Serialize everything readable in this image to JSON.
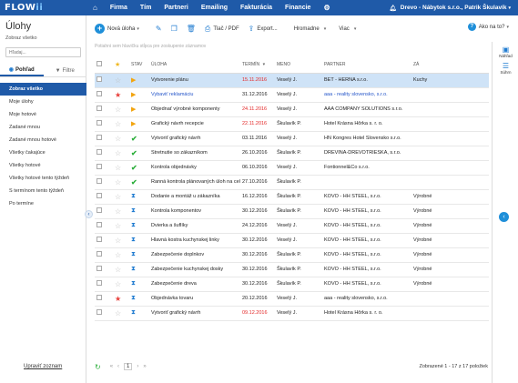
{
  "topbar": {
    "logo": "FLOW",
    "logo_suffix": "ii",
    "nav": [
      "Firma",
      "Tím",
      "Partneri",
      "Emailing",
      "Fakturácia",
      "Financie"
    ],
    "company_user": "Drevo - Nábytok s.r.o., Patrik Škulavík"
  },
  "left": {
    "title": "Úlohy",
    "subtitle": "Zobraz všetko",
    "search_placeholder": "Hľadaj...",
    "tab_view": "Pohľad",
    "tab_filter": "Filtre",
    "items": [
      "Zobraz všetko",
      "Moje úlohy",
      "Moje hotové",
      "Zadané mnou",
      "Zadané mnou hotové",
      "Všetky čakajúce",
      "Všetky hotové",
      "Všetky hotové tento týždeň",
      "S termínom tento týždeň",
      "Po termíne"
    ],
    "edit_list": "Upraviť zoznam"
  },
  "toolbar": {
    "new_task": "Nová úloha",
    "print_pdf": "Tlač / PDF",
    "export": "Export...",
    "bulk": "Hromadne",
    "more": "Viac",
    "help": "Ako na to?"
  },
  "group_hint": "Potiahni sem hlavičku stĺpca pre zoskupenie záznamov",
  "table": {
    "headers": [
      "",
      "",
      "STAV",
      "ÚLOHA",
      "TERMÍN",
      "MENO",
      "PARTNER",
      "ZÁ"
    ],
    "rows": [
      {
        "status": "flag",
        "star": false,
        "task": "Vytvorenie plánu",
        "date": "15.11.2016",
        "date_red": true,
        "name": "Veselý J.",
        "partner": "BET - HERNA s.r.o.",
        "extra": "Kuchy",
        "selected": true,
        "blue": false
      },
      {
        "status": "flag",
        "star": true,
        "task": "Vybaviť reklamáciu",
        "date": "31.12.2016",
        "date_red": false,
        "name": "Veselý J.",
        "partner": "aaa - reality slovensko, s.r.o.",
        "extra": "",
        "selected": false,
        "blue": true
      },
      {
        "status": "flag",
        "star": false,
        "task": "Objednať výrobné komponenty",
        "date": "24.11.2016",
        "date_red": true,
        "name": "Veselý J.",
        "partner": "AAA COMPANY SOLUTIONS s.r.o.",
        "extra": "",
        "selected": false,
        "blue": false
      },
      {
        "status": "flag",
        "star": false,
        "task": "Grafický návrh recepcie",
        "date": "22.11.2016",
        "date_red": true,
        "name": "Škulavík P.",
        "partner": "Hotel Krásna Hôrka s. r. o.",
        "extra": "",
        "selected": false,
        "blue": false
      },
      {
        "status": "check",
        "star": false,
        "task": "Vytvoriť grafický návrh",
        "date": "03.11.2016",
        "date_red": false,
        "name": "Veselý J.",
        "partner": "HN Kongres Hotel Slovensko s.r.o.",
        "extra": "",
        "selected": false,
        "blue": false
      },
      {
        "status": "check",
        "star": false,
        "task": "Stretnutie so zákazníkom",
        "date": "26.10.2016",
        "date_red": false,
        "name": "Škulavík P.",
        "partner": "DREVINA-DREVOTRIESKA, s.r.o.",
        "extra": "",
        "selected": false,
        "blue": false
      },
      {
        "status": "check",
        "star": false,
        "task": "Kontrola objednávky",
        "date": "06.10.2016",
        "date_red": false,
        "name": "Veselý J.",
        "partner": "Fontionnel&Co s.r.o.",
        "extra": "",
        "selected": false,
        "blue": false
      },
      {
        "status": "check",
        "star": false,
        "task": "Ranná kontrola plánovaných úloh na celý týždeň",
        "date": "27.10.2016",
        "date_red": false,
        "name": "Škulavík P.",
        "partner": "",
        "extra": "",
        "selected": false,
        "blue": false
      },
      {
        "status": "hour",
        "star": false,
        "task": "Dodanie a montáž u zákazníka",
        "date": "16.12.2016",
        "date_red": false,
        "name": "Škulavík P.",
        "partner": "KOVO - HH STEEL, s.r.o.",
        "extra": "Výrobné",
        "selected": false,
        "blue": false
      },
      {
        "status": "hour",
        "star": false,
        "task": "Kontrola komponentov",
        "date": "30.12.2016",
        "date_red": false,
        "name": "Škulavík P.",
        "partner": "KOVO - HH STEEL, s.r.o.",
        "extra": "Výrobné",
        "selected": false,
        "blue": false
      },
      {
        "status": "hour",
        "star": false,
        "task": "Dvierka a šuflíky",
        "date": "24.12.2016",
        "date_red": false,
        "name": "Veselý J.",
        "partner": "KOVO - HH STEEL, s.r.o.",
        "extra": "Výrobné",
        "selected": false,
        "blue": false
      },
      {
        "status": "hour",
        "star": false,
        "task": "Hlavná kostra kuchynskej linky",
        "date": "30.12.2016",
        "date_red": false,
        "name": "Veselý J.",
        "partner": "KOVO - HH STEEL, s.r.o.",
        "extra": "Výrobné",
        "selected": false,
        "blue": false
      },
      {
        "status": "hour",
        "star": false,
        "task": "Zabezpečenie doplnkov",
        "date": "30.12.2016",
        "date_red": false,
        "name": "Škulavík P.",
        "partner": "KOVO - HH STEEL, s.r.o.",
        "extra": "Výrobné",
        "selected": false,
        "blue": false
      },
      {
        "status": "hour",
        "star": false,
        "task": "Zabezpečenie kuchynskej dosky",
        "date": "30.12.2016",
        "date_red": false,
        "name": "Škulavík P.",
        "partner": "KOVO - HH STEEL, s.r.o.",
        "extra": "Výrobné",
        "selected": false,
        "blue": false
      },
      {
        "status": "hour",
        "star": false,
        "task": "Zabezpečenie dreva",
        "date": "30.12.2016",
        "date_red": false,
        "name": "Škulavík P.",
        "partner": "KOVO - HH STEEL, s.r.o.",
        "extra": "Výrobné",
        "selected": false,
        "blue": false
      },
      {
        "status": "hour",
        "star": true,
        "task": "Objednávka tovaru",
        "date": "20.12.2016",
        "date_red": false,
        "name": "Veselý J.",
        "partner": "aaa - reality slovensko, s.r.o.",
        "extra": "",
        "selected": false,
        "blue": false
      },
      {
        "status": "hour",
        "star": false,
        "task": "Vytvoriť grafický návrh",
        "date": "09.12.2016",
        "date_red": true,
        "name": "Veselý J.",
        "partner": "Hotel Krásna Hôrka s. r. o.",
        "extra": "",
        "selected": false,
        "blue": false
      }
    ]
  },
  "right": {
    "notes": "Náhľad",
    "summary": "Súhrn"
  },
  "footer": {
    "page": "1",
    "count": "Zobrazené 1 - 17 z 17 položiek"
  }
}
